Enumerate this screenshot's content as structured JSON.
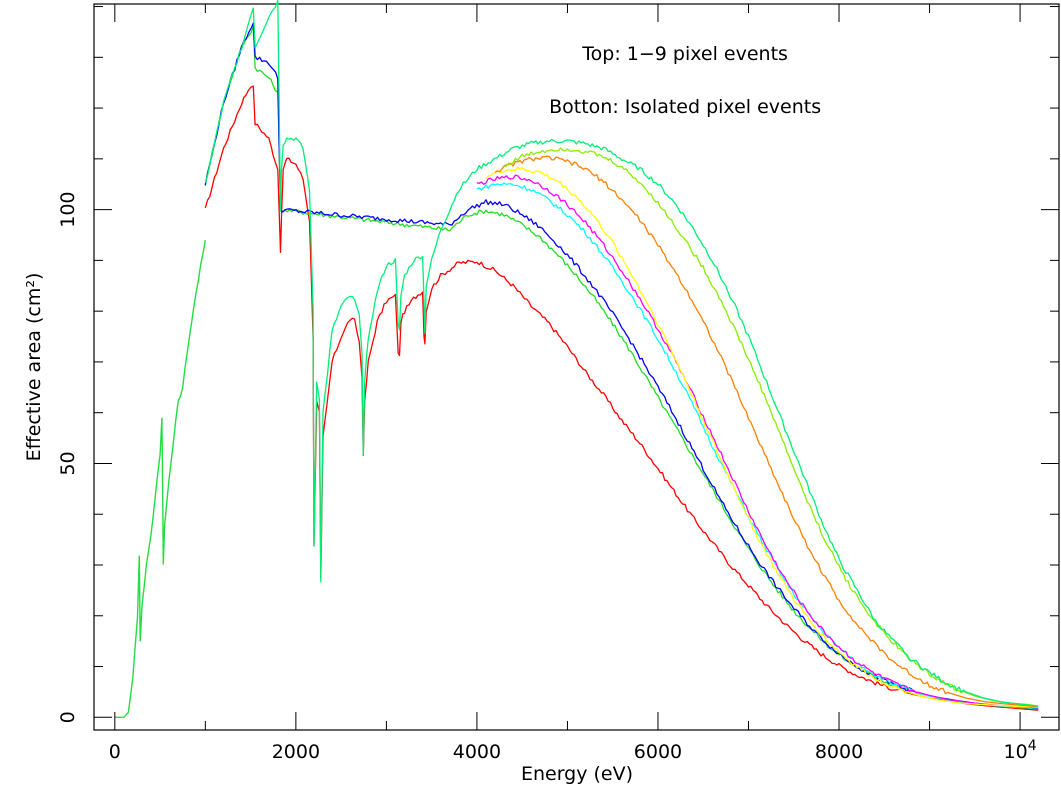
{
  "chart_data": {
    "type": "line",
    "title": "",
    "xlabel": "Energy (eV)",
    "ylabel": "Effective area (cm²)",
    "xlim": [
      -230,
      10430
    ],
    "ylim": [
      -2.5,
      140.5
    ],
    "grid": false,
    "legend": "none",
    "x_ticks": [
      {
        "value": 0,
        "label": "0"
      },
      {
        "value": 2000,
        "label": "2000"
      },
      {
        "value": 4000,
        "label": "4000"
      },
      {
        "value": 6000,
        "label": "6000"
      },
      {
        "value": 8000,
        "label": "8000"
      },
      {
        "value": 10000,
        "label": "10",
        "sup": "4"
      }
    ],
    "x_minor_step": 1000,
    "y_ticks": [
      {
        "value": 0,
        "label": "0"
      },
      {
        "value": 50,
        "label": "50"
      },
      {
        "value": 100,
        "label": "100"
      }
    ],
    "y_minor_step": 10,
    "annotations": [
      {
        "text": "Top: 1−9 pixel events",
        "x": 6300,
        "y": 129.5
      },
      {
        "text": "Botton: Isolated pixel events",
        "x": 6300,
        "y": 119.0
      }
    ],
    "common_low": {
      "x": [
        0,
        100,
        150,
        200,
        250,
        270,
        280,
        300,
        350,
        400,
        450,
        500,
        520,
        530,
        535,
        550,
        600,
        650,
        700,
        750,
        800,
        900,
        1000
      ],
      "y": [
        0,
        0,
        1,
        8,
        20,
        32,
        15,
        22,
        30,
        36,
        44,
        52,
        59,
        42,
        30,
        38,
        47,
        55,
        62,
        65,
        72,
        84,
        94
      ]
    },
    "series": [
      {
        "color": "#00ee77",
        "x": [
          1000,
          1200,
          1400,
          1530,
          1550,
          1700,
          1800,
          1830,
          1840,
          1860,
          1900,
          2000,
          2080,
          2150,
          2190,
          2200,
          2230,
          2260,
          2275,
          2300,
          2400,
          2500,
          2600,
          2650,
          2700,
          2730,
          2745,
          2760,
          2800,
          2900,
          3000,
          3100,
          3130,
          3145,
          3160,
          3200,
          3300,
          3400,
          3415,
          3425,
          3440,
          3500,
          3600,
          3800,
          4000,
          4200,
          4400,
          4600,
          4800,
          5000,
          5200,
          5400,
          5600,
          5800,
          6000,
          6200,
          6400,
          6600,
          6800,
          7000,
          7200,
          7400,
          7600,
          7800,
          8000,
          8200,
          8400,
          8600,
          8800,
          9000,
          9200,
          9400,
          9600,
          9800,
          10000,
          10100,
          10200
        ],
        "y": [
          105,
          121,
          132,
          140,
          132,
          138,
          141,
          100,
          108,
          113,
          114,
          114,
          112,
          104,
          80,
          34,
          66,
          63,
          27,
          60,
          76,
          81,
          83,
          82,
          79,
          72,
          52,
          66,
          75,
          84,
          89,
          90,
          77,
          76,
          83,
          87,
          90,
          91,
          82,
          76,
          85,
          90,
          96,
          104,
          108,
          110,
          112,
          113,
          113.5,
          113.5,
          113,
          112,
          110,
          108,
          105,
          101,
          96,
          90,
          83,
          75,
          66,
          57,
          48,
          39,
          31,
          25,
          19,
          15,
          11.5,
          8.8,
          6.6,
          5,
          3.8,
          3,
          2.6,
          2.4,
          2.2
        ]
      },
      {
        "color": "#88ee00",
        "x": [
          4300,
          4500,
          4700,
          4900,
          5100,
          5300,
          5500,
          5700,
          5900,
          6100,
          6300,
          6500,
          6700,
          6900,
          7100,
          7300,
          7500,
          7700,
          7900,
          8100,
          8300,
          8500,
          8700,
          8900,
          9100,
          9300,
          9500,
          9700,
          9900,
          10100,
          10200
        ],
        "y": [
          108.5,
          110.5,
          111.5,
          112,
          111.8,
          111,
          109.5,
          107,
          103.5,
          99,
          94,
          88.5,
          82,
          74.5,
          66.5,
          58,
          49,
          40.5,
          33,
          26.5,
          21,
          16.5,
          12.8,
          9.8,
          7.4,
          5.5,
          4.2,
          3.3,
          2.8,
          2.5,
          2.2
        ]
      },
      {
        "color": "#ff8000",
        "x": [
          4200,
          4400,
          4600,
          4800,
          5000,
          5200,
          5400,
          5600,
          5800,
          6000,
          6200,
          6400,
          6600,
          6800,
          7000,
          7200,
          7400,
          7600,
          7800,
          8000,
          8200,
          8400,
          8600,
          8800,
          9000,
          9200,
          9400,
          9600,
          9800,
          10000,
          10200
        ],
        "y": [
          107.5,
          109,
          110,
          110.2,
          109.5,
          108,
          105.5,
          102,
          98,
          93,
          87.5,
          81.5,
          74.5,
          67,
          59,
          51,
          43,
          35.5,
          29,
          23,
          18.3,
          14.3,
          11,
          8.4,
          6.4,
          4.9,
          3.8,
          3.1,
          2.7,
          2.4,
          2.1
        ]
      },
      {
        "color": "#ffff00",
        "x": [
          4100,
          4300,
          4500,
          4700,
          4900,
          5100,
          5300,
          5500,
          5700,
          5900,
          6100,
          6300,
          6500,
          6700,
          6900,
          7100,
          7300,
          7500,
          7700,
          7900,
          8100,
          8300,
          8500,
          8700,
          8900,
          9100,
          9300,
          9500,
          9700,
          9900,
          10200
        ],
        "y": [
          106.5,
          107.8,
          108,
          107.3,
          105.5,
          102.5,
          98.5,
          93.5,
          87.5,
          81,
          74,
          66.5,
          58.5,
          50.5,
          43,
          35.5,
          29,
          23.3,
          18.5,
          14.5,
          11.3,
          8.7,
          6.8,
          5.3,
          4.2,
          3.4,
          2.9,
          2.6,
          2.4,
          2.2,
          2.0
        ]
      },
      {
        "color": "#ff00ff",
        "x": [
          4000,
          4200,
          4400,
          4600,
          4800,
          5000,
          5200,
          5400,
          5600,
          5800,
          6000,
          6200,
          6400,
          6600,
          6800,
          7000,
          7200,
          7400,
          7600,
          7800,
          8000,
          8200,
          8400,
          8600,
          8800,
          9000,
          9200,
          9400,
          9600,
          9800,
          10000,
          10200
        ],
        "y": [
          105,
          106,
          106.5,
          105.8,
          103.8,
          101,
          97.5,
          93,
          88,
          82.5,
          76.5,
          70,
          63,
          55.5,
          48,
          40.5,
          33.5,
          27.3,
          22,
          17.5,
          13.8,
          10.8,
          8.5,
          6.7,
          5.3,
          4.3,
          3.5,
          3,
          2.6,
          2.3,
          2.1,
          1.9
        ]
      },
      {
        "color": "#00ffff",
        "x": [
          4000,
          4200,
          4400,
          4600,
          4800,
          5000,
          5200,
          5400,
          5600,
          5800,
          6000,
          6200,
          6400,
          6600,
          6800,
          7000,
          7200,
          7400,
          7600,
          7800,
          8000,
          8200,
          8400,
          8600,
          8800,
          9000,
          9200,
          9400,
          9600,
          9800,
          10000,
          10200
        ],
        "y": [
          104,
          105,
          105,
          104,
          101.8,
          99,
          95.5,
          91,
          86,
          80.5,
          74.5,
          68,
          61,
          53.5,
          46.5,
          39.5,
          33,
          27,
          21.8,
          17.4,
          13.7,
          10.7,
          8.4,
          6.6,
          5.2,
          4.2,
          3.4,
          2.9,
          2.5,
          2.2,
          2,
          1.8
        ]
      },
      {
        "color": "#0000ff",
        "x": [
          1000,
          1200,
          1400,
          1530,
          1550,
          1700,
          1800,
          1830,
          3700,
          3900,
          4100,
          4300,
          4500,
          4700,
          4900,
          5100,
          5300,
          5500,
          5700,
          5900,
          6100,
          6300,
          6500,
          6700,
          6900,
          7100,
          7300,
          7500,
          7700,
          7900,
          8100,
          8300,
          8500,
          8700,
          8900,
          9100,
          9300,
          9500,
          9700,
          9900,
          10100,
          10200
        ],
        "y": [
          105,
          121,
          132,
          137,
          130,
          129,
          126,
          100,
          97,
          100,
          101.5,
          101,
          99,
          96.5,
          93,
          89,
          84.5,
          79.5,
          74,
          68,
          62,
          55.5,
          49,
          42.5,
          36.5,
          31,
          26,
          21.5,
          17.5,
          14,
          11.2,
          9,
          7.2,
          5.8,
          4.7,
          3.9,
          3.3,
          2.8,
          2.4,
          2.1,
          1.9,
          1.7
        ]
      },
      {
        "color": "#22dd22",
        "x": [
          1000,
          1200,
          1400,
          1530,
          1550,
          1700,
          1800,
          1830,
          3700,
          3900,
          4100,
          4300,
          4500,
          4700,
          4900,
          5100,
          5300,
          5500,
          5700,
          5900,
          6100,
          6300,
          6500,
          6700,
          6900,
          7100,
          7300,
          7500,
          7700,
          7900,
          8100,
          8300,
          8500,
          8700,
          8900,
          9100,
          9300,
          9500,
          9700,
          9900,
          10100,
          10200
        ],
        "y": [
          105,
          121,
          132,
          136,
          128,
          126,
          123,
          100,
          96,
          99,
          99.8,
          99,
          97,
          94.5,
          91,
          87,
          82.5,
          77.5,
          72,
          66,
          60,
          54,
          48,
          42,
          36,
          30.5,
          25.5,
          21,
          17.2,
          13.8,
          11,
          8.8,
          7.1,
          5.7,
          4.6,
          3.8,
          3.2,
          2.7,
          2.3,
          2,
          1.8,
          1.6
        ]
      },
      {
        "color": "#ff0000",
        "x": [
          1000,
          1200,
          1400,
          1500,
          1530,
          1550,
          1700,
          1800,
          1830,
          1845,
          1860,
          1900,
          2000,
          2080,
          2150,
          2190,
          2200,
          2230,
          2260,
          2275,
          2300,
          2400,
          2500,
          2600,
          2650,
          2700,
          2730,
          2745,
          2760,
          2800,
          2900,
          3000,
          3100,
          3130,
          3145,
          3160,
          3200,
          3300,
          3400,
          3415,
          3425,
          3440,
          3500,
          3600,
          3800,
          4000,
          4200,
          4400,
          4600,
          4800,
          5000,
          5200,
          5400,
          5600,
          5800,
          6000,
          6200,
          6400,
          6600,
          6800,
          7000,
          7200,
          7400,
          7600,
          7800,
          8000,
          8200,
          8400,
          8600,
          8800,
          9000,
          9200,
          9400,
          9600,
          9800,
          10000,
          10200
        ],
        "y": [
          100,
          112,
          121,
          124.5,
          124,
          117,
          114,
          108,
          92,
          100,
          108,
          110,
          109,
          106,
          98,
          75,
          34,
          62,
          60,
          27,
          55,
          70,
          75,
          78.5,
          78,
          74,
          67,
          52,
          62,
          70,
          78,
          82,
          83,
          72,
          71,
          78,
          80,
          82.5,
          84,
          75,
          74,
          80,
          84.5,
          87,
          89.5,
          89.8,
          88,
          85,
          81,
          77.5,
          73,
          68,
          63.5,
          58.5,
          54,
          49,
          44,
          39,
          34.5,
          30,
          26,
          22,
          18.5,
          15.3,
          12.5,
          10.2,
          8.3,
          6.8,
          5.6,
          4.6,
          3.8,
          3.2,
          2.7,
          2.3,
          2,
          1.7,
          1.4
        ]
      }
    ]
  }
}
